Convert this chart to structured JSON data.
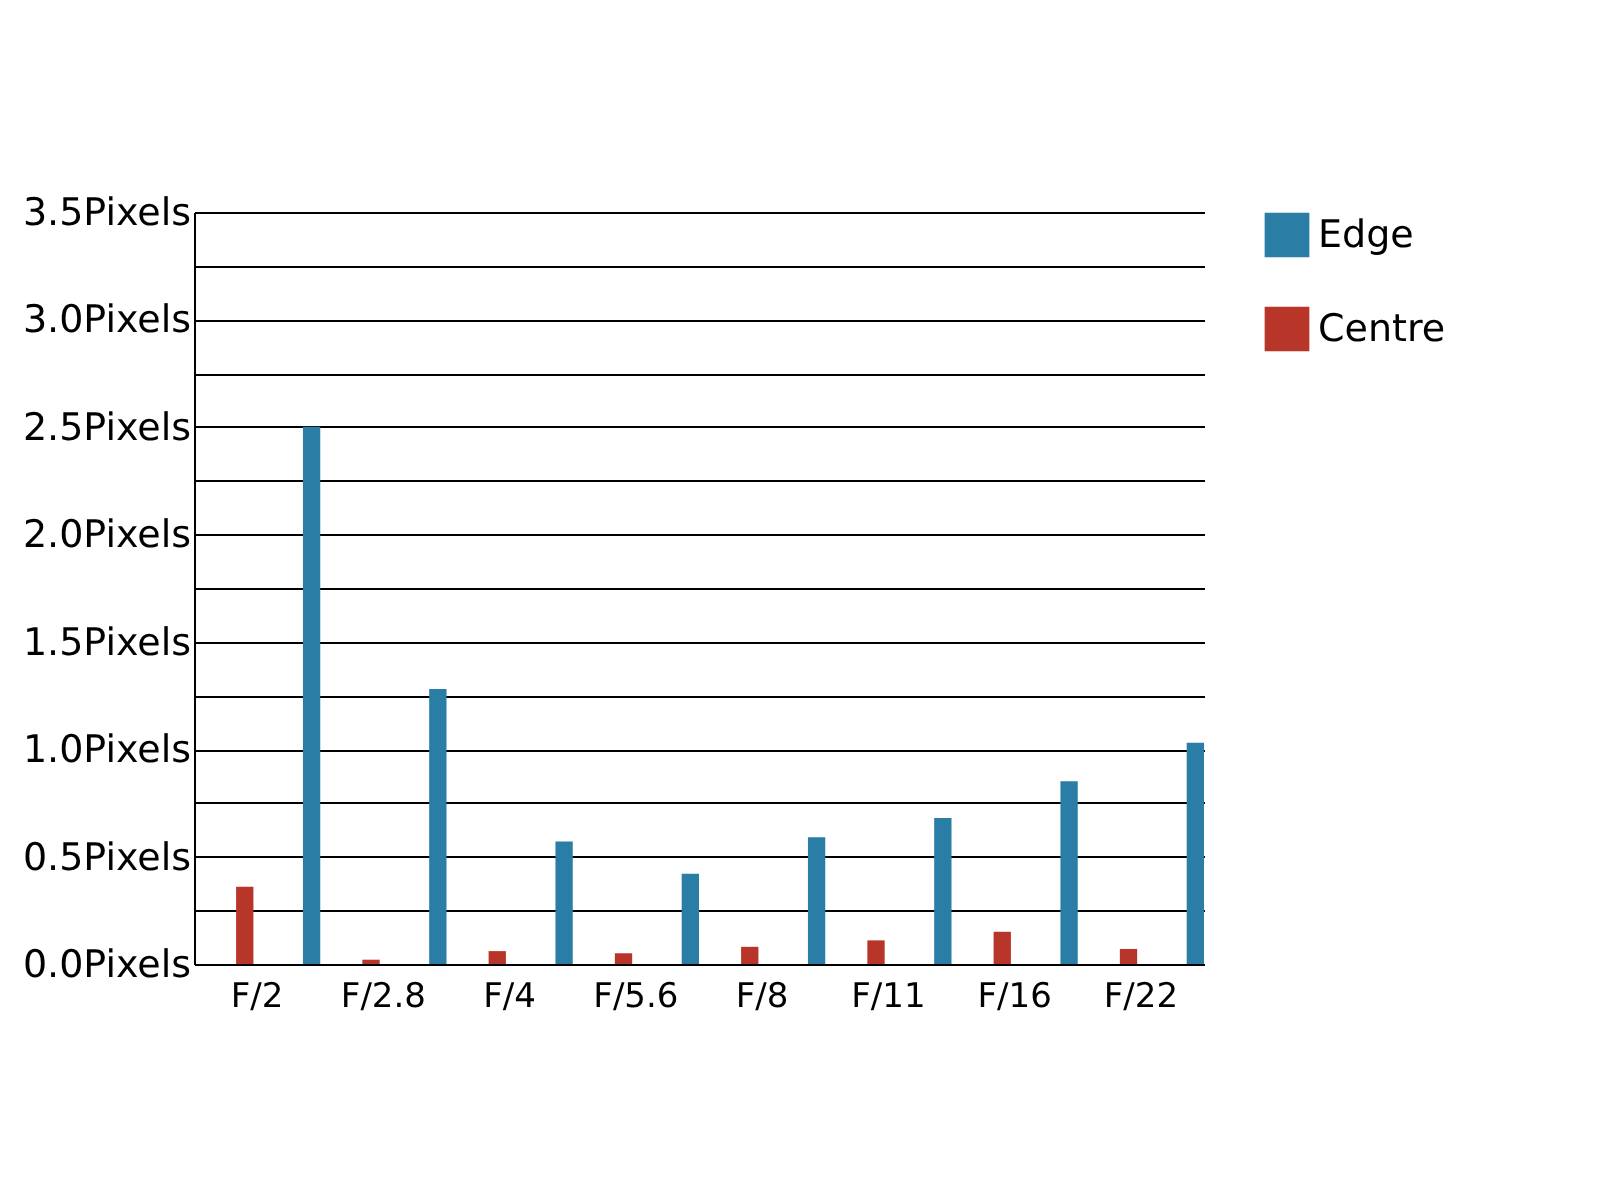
{
  "chart_data": {
    "type": "bar",
    "categories": [
      "F/2",
      "F/2.8",
      "F/4",
      "F/5.6",
      "F/8",
      "F/11",
      "F/16",
      "F/22"
    ],
    "series": [
      {
        "name": "Centre",
        "color": "#b8352a",
        "values": [
          0.36,
          0.02,
          0.06,
          0.05,
          0.08,
          0.11,
          0.15,
          0.07
        ]
      },
      {
        "name": "Edge",
        "color": "#2a7ea6",
        "values": [
          2.5,
          1.28,
          0.57,
          0.42,
          0.59,
          0.68,
          0.85,
          1.03
        ]
      }
    ],
    "ylim": [
      0,
      3.5
    ],
    "yticks": [
      {
        "value": 0,
        "label": "0.0Pixels"
      },
      {
        "value": 0.25,
        "label": null
      },
      {
        "value": 0.5,
        "label": "0.5Pixels"
      },
      {
        "value": 0.75,
        "label": null
      },
      {
        "value": 1,
        "label": "1.0Pixels"
      },
      {
        "value": 1.25,
        "label": null
      },
      {
        "value": 1.5,
        "label": "1.5Pixels"
      },
      {
        "value": 1.75,
        "label": null
      },
      {
        "value": 2,
        "label": "2.0Pixels"
      },
      {
        "value": 2.25,
        "label": null
      },
      {
        "value": 2.5,
        "label": "2.5Pixels"
      },
      {
        "value": 2.75,
        "label": null
      },
      {
        "value": 3,
        "label": "3.0Pixels"
      },
      {
        "value": 3.25,
        "label": null
      },
      {
        "value": 3.5,
        "label": "3.5Pixels"
      }
    ],
    "grid": "y",
    "legend": "top right"
  }
}
